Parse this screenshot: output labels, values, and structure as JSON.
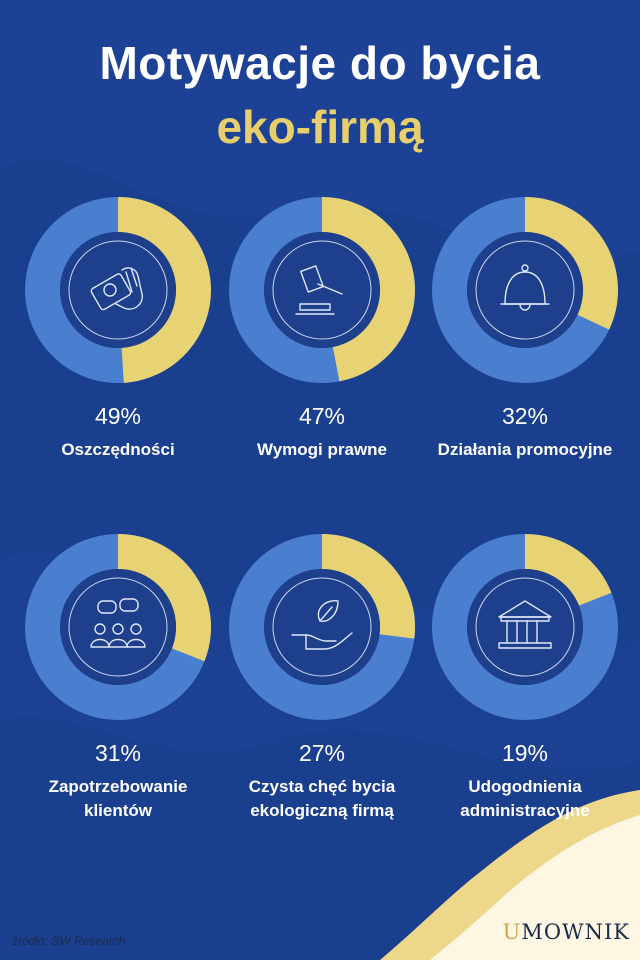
{
  "title_line1": "Motywacje do bycia",
  "title_line2": "eko-firmą",
  "colors": {
    "background": "#1b3f8f",
    "ring_inner": "#1d3f8c",
    "ring_rest": "#4a7fcf",
    "ring_value": "#e8d374",
    "title_accent": "#e8cf6d",
    "corner_light": "#fdf6e3",
    "corner_gold": "#ecd78a"
  },
  "chart_data": {
    "type": "pie",
    "variant": "donut-grid",
    "unit": "%",
    "max": 100,
    "items": [
      {
        "value": 49,
        "display": "49%",
        "label_lines": [
          "Oszczędności"
        ],
        "icon": "money-hand-icon"
      },
      {
        "value": 47,
        "display": "47%",
        "label_lines": [
          "Wymogi prawne"
        ],
        "icon": "gavel-icon"
      },
      {
        "value": 32,
        "display": "32%",
        "label_lines": [
          "Działania promocyjne"
        ],
        "icon": "bell-icon"
      },
      {
        "value": 31,
        "display": "31%",
        "label_lines": [
          "Zapotrzebowanie",
          "klientów"
        ],
        "icon": "people-chat-icon"
      },
      {
        "value": 27,
        "display": "27%",
        "label_lines": [
          "Czysta chęć bycia",
          "ekologiczną firmą"
        ],
        "icon": "leaf-hand-icon"
      },
      {
        "value": 19,
        "display": "19%",
        "label_lines": [
          "Udogodnienia",
          "administracyjne"
        ],
        "icon": "building-icon"
      }
    ]
  },
  "footer": {
    "source": "źródło: SW Research",
    "logo_u": "U",
    "logo_rest": "MOWNIK"
  }
}
